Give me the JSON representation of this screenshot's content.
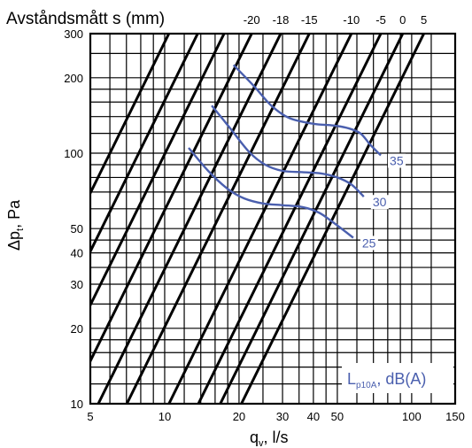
{
  "chart_data": {
    "type": "line",
    "title": "Avståndsmått s (mm)",
    "xlabel_main": "q",
    "xlabel_sub": "v",
    "xlabel_unit": ", l/s",
    "ylabel_main": "Δp",
    "ylabel_sub": "t",
    "ylabel_unit": ", Pa",
    "x_scale": "log",
    "y_scale": "log",
    "xlim": [
      5,
      150
    ],
    "ylim": [
      10,
      300
    ],
    "x_ticks": [
      5,
      10,
      20,
      30,
      40,
      50,
      100,
      150
    ],
    "y_ticks": [
      10,
      20,
      30,
      40,
      50,
      100,
      200,
      300
    ],
    "x_grid": [
      6,
      7,
      8,
      9,
      10,
      12,
      14,
      16,
      18,
      20,
      25,
      30,
      35,
      40,
      45,
      50,
      60,
      70,
      80,
      90,
      100,
      120,
      150
    ],
    "y_grid": [
      12,
      14,
      16,
      18,
      20,
      25,
      30,
      35,
      40,
      45,
      50,
      60,
      70,
      80,
      90,
      100,
      120,
      140,
      160,
      180,
      200,
      250,
      300
    ],
    "spacing_lines": [
      {
        "label": "-20",
        "x_at_ymax": 22.5
      },
      {
        "label": "-18",
        "x_at_ymax": 29.5
      },
      {
        "label": "-15",
        "x_at_ymax": 38.5
      },
      {
        "label": "-10",
        "x_at_ymax": 57
      },
      {
        "label": "-5",
        "x_at_ymax": 75
      },
      {
        "label": "0",
        "x_at_ymax": 92
      },
      {
        "label": "5",
        "x_at_ymax": 112
      },
      {
        "label": "",
        "x_at_ymax": 17.4
      },
      {
        "label": "",
        "x_at_ymax": 13.6
      },
      {
        "label": "",
        "x_at_ymax": 10.4
      }
    ],
    "spacing_slope": 2,
    "noise_legend_main": "L",
    "noise_legend_sub": "p10A",
    "noise_legend_unit": ", dB(A)",
    "noise_series": [
      {
        "name": "25",
        "points": [
          [
            12.5,
            105
          ],
          [
            15,
            85
          ],
          [
            18,
            72
          ],
          [
            21,
            66
          ],
          [
            25,
            63
          ],
          [
            30,
            62
          ],
          [
            36,
            61
          ],
          [
            42,
            58
          ],
          [
            48,
            53
          ],
          [
            58,
            46
          ]
        ]
      },
      {
        "name": "30",
        "points": [
          [
            15.5,
            155
          ],
          [
            18.5,
            125
          ],
          [
            22,
            101
          ],
          [
            25.5,
            90
          ],
          [
            30,
            85
          ],
          [
            36,
            84
          ],
          [
            43,
            83
          ],
          [
            50,
            80
          ],
          [
            57,
            75
          ],
          [
            64,
            67
          ]
        ]
      },
      {
        "name": "35",
        "points": [
          [
            19,
            225
          ],
          [
            23,
            185
          ],
          [
            27,
            155
          ],
          [
            32,
            138
          ],
          [
            40,
            131
          ],
          [
            48,
            129
          ],
          [
            55,
            126
          ],
          [
            62,
            120
          ],
          [
            68,
            108
          ],
          [
            75,
            98
          ]
        ]
      }
    ]
  }
}
